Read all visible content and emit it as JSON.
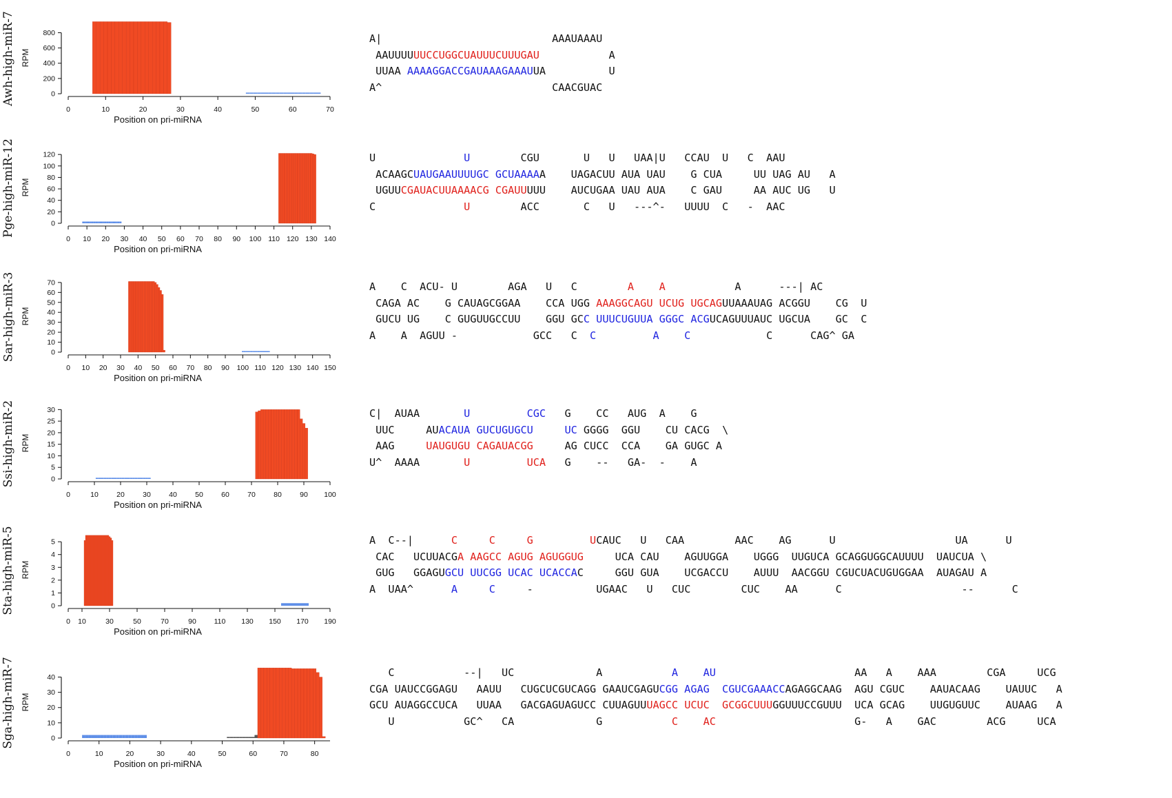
{
  "figure": {
    "x_axis_label": "Position on pri-miRNA",
    "y_axis_label": "RPM",
    "colors": {
      "mature": "#f04a23",
      "star": "#5f8fe8",
      "axis": "#111111",
      "mature_text": "#e0201b",
      "star_text": "#1f24e0"
    }
  },
  "chart_data": [
    {
      "type": "bar",
      "name": "Awh-high-miR-7",
      "xlim": [
        0,
        70
      ],
      "xticks": [
        0,
        10,
        20,
        30,
        40,
        50,
        60,
        70
      ],
      "ylim": [
        0,
        940
      ],
      "yticks": [
        0,
        200,
        400,
        600,
        800
      ],
      "xlabel": "Position on pri-miRNA",
      "ylabel": "RPM",
      "bars": [
        {
          "role": "mature",
          "color": "#f04a23",
          "x": [
            7,
            8,
            9,
            10,
            11,
            12,
            13,
            14,
            15,
            16,
            17,
            18,
            19,
            20,
            21,
            22,
            23,
            24,
            25,
            26,
            27
          ],
          "values": [
            945,
            945,
            945,
            945,
            945,
            945,
            945,
            945,
            945,
            945,
            945,
            945,
            945,
            945,
            945,
            945,
            945,
            945,
            945,
            945,
            935
          ]
        },
        {
          "role": "star",
          "color": "#5f8fe8",
          "x": [
            48,
            49,
            50,
            51,
            52,
            53,
            54,
            55,
            56,
            57,
            58,
            59,
            60,
            61,
            62,
            63,
            64,
            65,
            66,
            67
          ],
          "values": [
            10,
            10,
            10,
            10,
            10,
            10,
            10,
            10,
            10,
            10,
            10,
            10,
            10,
            10,
            10,
            10,
            10,
            10,
            10,
            10
          ]
        }
      ]
    },
    {
      "type": "bar",
      "name": "Pge-high-miR-12",
      "xlim": [
        0,
        140
      ],
      "xticks": [
        0,
        10,
        20,
        30,
        40,
        50,
        60,
        70,
        80,
        90,
        100,
        110,
        120,
        130,
        140
      ],
      "ylim": [
        0,
        125
      ],
      "yticks": [
        0,
        20,
        40,
        60,
        80,
        100,
        120
      ],
      "xlabel": "Position on pri-miRNA",
      "ylabel": "RPM",
      "bars": [
        {
          "role": "star",
          "color": "#5f8fe8",
          "x": [
            8,
            9,
            10,
            11,
            12,
            13,
            14,
            15,
            16,
            17,
            18,
            19,
            20,
            21,
            22,
            23,
            24,
            25,
            26,
            27,
            28
          ],
          "values": [
            3,
            3,
            3,
            3,
            3,
            3,
            3,
            3,
            3,
            3,
            3,
            3,
            3,
            3,
            3,
            3,
            3,
            3,
            3,
            3,
            3
          ]
        },
        {
          "role": "mature",
          "color": "#f04a23",
          "x": [
            113,
            114,
            115,
            116,
            117,
            118,
            119,
            120,
            121,
            122,
            123,
            124,
            125,
            126,
            127,
            128,
            129,
            130,
            131,
            132
          ],
          "values": [
            122,
            122,
            122,
            122,
            122,
            122,
            122,
            122,
            122,
            122,
            122,
            122,
            122,
            122,
            122,
            122,
            122,
            122,
            121,
            120
          ]
        }
      ]
    },
    {
      "type": "bar",
      "name": "Sar-high-miR-3",
      "xlim": [
        0,
        150
      ],
      "xticks": [
        0,
        10,
        20,
        30,
        40,
        50,
        60,
        70,
        80,
        90,
        100,
        110,
        120,
        130,
        140,
        150
      ],
      "ylim": [
        0,
        72
      ],
      "yticks": [
        0,
        10,
        20,
        30,
        40,
        50,
        60,
        70
      ],
      "xlabel": "Position on pri-miRNA",
      "ylabel": "RPM",
      "bars": [
        {
          "role": "mature",
          "color": "#f04a23",
          "x": [
            35,
            36,
            37,
            38,
            39,
            40,
            41,
            42,
            43,
            44,
            45,
            46,
            47,
            48,
            49,
            50,
            51,
            52,
            53,
            54,
            55
          ],
          "values": [
            71,
            71,
            71,
            71,
            71,
            71,
            71,
            71,
            71,
            71,
            71,
            71,
            71,
            71,
            71,
            70,
            68,
            65,
            62,
            58,
            2
          ]
        },
        {
          "role": "star",
          "color": "#5f8fe8",
          "x": [
            100,
            101,
            102,
            103,
            104,
            105,
            106,
            107,
            108,
            109,
            110,
            111,
            112,
            113,
            114,
            115
          ],
          "values": [
            0.4,
            0.4,
            0.4,
            0.4,
            0.4,
            0.4,
            0.4,
            0.4,
            0.4,
            0.4,
            0.4,
            0.4,
            0.4,
            0.4,
            0.4,
            0.4
          ]
        }
      ]
    },
    {
      "type": "bar",
      "name": "Ssi-high-miR-2",
      "xlim": [
        0,
        100
      ],
      "xticks": [
        0,
        10,
        20,
        30,
        40,
        50,
        60,
        70,
        80,
        90,
        100
      ],
      "ylim": [
        0,
        31
      ],
      "yticks": [
        0,
        5,
        10,
        15,
        20,
        25,
        30
      ],
      "xlabel": "Position on pri-miRNA",
      "ylabel": "RPM",
      "bars": [
        {
          "role": "star",
          "color": "#5f8fe8",
          "x": [
            11,
            12,
            13,
            14,
            15,
            16,
            17,
            18,
            19,
            20,
            21,
            22,
            23,
            24,
            25,
            26,
            27,
            28,
            29,
            30,
            31
          ],
          "values": [
            0.5,
            0.5,
            0.5,
            0.5,
            0.5,
            0.5,
            0.5,
            0.5,
            0.5,
            0.5,
            0.5,
            0.5,
            0.5,
            0.5,
            0.5,
            0.5,
            0.5,
            0.5,
            0.5,
            0.5,
            0.5
          ]
        },
        {
          "role": "mature",
          "color": "#f04a23",
          "x": [
            72,
            73,
            74,
            75,
            76,
            77,
            78,
            79,
            80,
            81,
            82,
            83,
            84,
            85,
            86,
            87,
            88,
            89,
            90,
            91
          ],
          "values": [
            29,
            29.5,
            30,
            30,
            30,
            30,
            30,
            30,
            30,
            30,
            30,
            30,
            30,
            30,
            30,
            30,
            30,
            26,
            24,
            22
          ]
        }
      ]
    },
    {
      "type": "bar",
      "name": "Sta-high-miR-5",
      "xlim": [
        0,
        190
      ],
      "xticks": [
        0,
        10,
        30,
        50,
        70,
        90,
        110,
        130,
        150,
        170,
        190
      ],
      "ylim": [
        0,
        5.6
      ],
      "yticks": [
        0,
        1,
        2,
        3,
        4,
        5
      ],
      "xlabel": "Position on pri-miRNA",
      "ylabel": "RPM",
      "bars": [
        {
          "role": "mature",
          "color": "#f04a23",
          "x": [
            12,
            13,
            14,
            15,
            16,
            17,
            18,
            19,
            20,
            21,
            22,
            23,
            24,
            25,
            26,
            27,
            28,
            29,
            30,
            31,
            32
          ],
          "values": [
            5.1,
            5.5,
            5.5,
            5.5,
            5.5,
            5.5,
            5.5,
            5.5,
            5.5,
            5.5,
            5.5,
            5.5,
            5.5,
            5.5,
            5.5,
            5.5,
            5.5,
            5.5,
            5.4,
            5.3,
            5.1
          ]
        },
        {
          "role": "star",
          "color": "#5f8fe8",
          "x": [
            155,
            156,
            157,
            158,
            159,
            160,
            161,
            162,
            163,
            164,
            165,
            166,
            167,
            168,
            169,
            170,
            171,
            172,
            173,
            174
          ],
          "values": [
            0.2,
            0.2,
            0.2,
            0.2,
            0.2,
            0.2,
            0.2,
            0.2,
            0.2,
            0.2,
            0.2,
            0.2,
            0.2,
            0.2,
            0.2,
            0.2,
            0.2,
            0.2,
            0.2,
            0.2
          ]
        }
      ]
    },
    {
      "type": "bar",
      "name": "Sga-high-miR-7",
      "xlim": [
        0,
        85
      ],
      "xticks": [
        0,
        10,
        20,
        30,
        40,
        50,
        60,
        70,
        80
      ],
      "ylim": [
        0,
        47
      ],
      "yticks": [
        0,
        10,
        20,
        30,
        40
      ],
      "xlabel": "Position on pri-miRNA",
      "ylabel": "RPM",
      "bars": [
        {
          "role": "star",
          "color": "#5f8fe8",
          "x": [
            5,
            6,
            7,
            8,
            9,
            10,
            11,
            12,
            13,
            14,
            15,
            16,
            17,
            18,
            19,
            20,
            21,
            22,
            23,
            24,
            25
          ],
          "values": [
            2,
            2,
            2,
            2,
            2,
            2,
            2,
            2,
            2,
            2,
            2,
            2,
            2,
            2,
            2,
            2,
            2,
            2,
            2,
            2,
            2
          ]
        },
        {
          "role": "other",
          "color": "#555555",
          "x": [
            52,
            53,
            54,
            55,
            56,
            57,
            58,
            59,
            60,
            61
          ],
          "values": [
            0.5,
            0.5,
            0.5,
            0.5,
            0.5,
            0.5,
            0.5,
            0.5,
            0.5,
            2
          ]
        },
        {
          "role": "mature",
          "color": "#f04a23",
          "x": [
            62,
            63,
            64,
            65,
            66,
            67,
            68,
            69,
            70,
            71,
            72,
            73,
            74,
            75,
            76,
            77,
            78,
            79,
            80,
            81,
            82,
            83
          ],
          "values": [
            46,
            46,
            46,
            46,
            46,
            46,
            46,
            46,
            46,
            46,
            46,
            45.5,
            45.5,
            45.5,
            45.5,
            45.5,
            45.5,
            45.5,
            45.5,
            43,
            40,
            1
          ]
        }
      ]
    }
  ],
  "structures": [
    {
      "lines": [
        [
          {
            "t": "A|                           AAAUAAAU"
          }
        ],
        [
          {
            "t": " AAUUUU"
          },
          {
            "t": "UUCCUGGCUAUUUCUUUGAU",
            "c": "r"
          },
          {
            "t": "           A"
          }
        ],
        [
          {
            "t": " UUAA "
          },
          {
            "t": "AAAAGGACCGAUAAAGAAAU",
            "c": "b"
          },
          {
            "t": "UA          U"
          }
        ],
        [
          {
            "t": "A^                           CAACGUAC"
          }
        ]
      ]
    },
    {
      "lines": [
        [
          {
            "t": "U              "
          },
          {
            "t": "U",
            "c": "b"
          },
          {
            "t": "        CGU       U   U   UAA|U   CCAU  U   C  AAU"
          }
        ],
        [
          {
            "t": " ACAAGC"
          },
          {
            "t": "UAUGAAUUUUGC GCUAAAA",
            "c": "b"
          },
          {
            "t": "A    UAGACUU AUA UAU    G CUA     UU UAG AU   A"
          }
        ],
        [
          {
            "t": " UGUU"
          },
          {
            "t": "CGAUACUUAAAACG CGAUU",
            "c": "r"
          },
          {
            "t": "UUU    AUCUGAA UAU AUA    C GAU     AA AUC UG   U"
          }
        ],
        [
          {
            "t": "C              "
          },
          {
            "t": "U",
            "c": "r"
          },
          {
            "t": "        ACC       C   U   ---^-   UUUU  C   -  AAC"
          }
        ]
      ]
    },
    {
      "lines": [
        [
          {
            "t": "A    C  ACU- U        AGA   U   C        "
          },
          {
            "t": "A    A",
            "c": "r"
          },
          {
            "t": "           A      ---| AC"
          }
        ],
        [
          {
            "t": " CAGA AC    G CAUAGCGGAA    CCA UGG "
          },
          {
            "t": "AAAGGCAGU UCUG UGCAG",
            "c": "r"
          },
          {
            "t": "UUAAAUAG ACGGU    CG  U"
          }
        ],
        [
          {
            "t": " GUCU UG    C GUGUUGCCUU    GGU GC"
          },
          {
            "t": "C UUUCUGUUA GGGC ACG",
            "c": "b"
          },
          {
            "t": "UCAGUUUAUC UGCUA    GC  C"
          }
        ],
        [
          {
            "t": "A    A  AGUU -            GCC   C  "
          },
          {
            "t": "C         A    C",
            "c": "b"
          },
          {
            "t": "            C      CAG^ GA"
          }
        ]
      ]
    },
    {
      "lines": [
        [
          {
            "t": "C|  AUAA       "
          },
          {
            "t": "U         CGC",
            "c": "b"
          },
          {
            "t": "   G    CC   AUG  A    G"
          }
        ],
        [
          {
            "t": " UUC     AU"
          },
          {
            "t": "ACAUA GUCUGUGCU     UC",
            "c": "b"
          },
          {
            "t": " GGGG  GGU    CU CACG  \\"
          }
        ],
        [
          {
            "t": " AAG     "
          },
          {
            "t": "UAUGUGU CAGAUACGG     ",
            "c": "r"
          },
          {
            "t": "AG CUCC  CCA    GA GUGC A"
          }
        ],
        [
          {
            "t": "U^  AAAA       "
          },
          {
            "t": "U         UCA",
            "c": "r"
          },
          {
            "t": "   G    --   GA-  -    A"
          }
        ]
      ]
    },
    {
      "lines": [
        [
          {
            "t": "A  C--|      "
          },
          {
            "t": "C     C     G         U",
            "c": "r"
          },
          {
            "t": "CAUC   U   CAA        AAC    AG      U                   UA      U"
          }
        ],
        [
          {
            "t": " CAC   UCUUACG"
          },
          {
            "t": "A AAGCC AGUG AGUGGUG",
            "c": "r"
          },
          {
            "t": "     UCA CAU    AGUUGGA    UGGG  UUGUCA GCAGGUGGCAUUUU  UAUCUA \\"
          }
        ],
        [
          {
            "t": " GUG   GGAGU"
          },
          {
            "t": "GCU UUCGG UCAC UCACCA",
            "c": "b"
          },
          {
            "t": "C     GGU GUA    UCGACCU    AUUU  AACGGU CGUCUACUGUGGAA  AUAGAU A"
          }
        ],
        [
          {
            "t": "A  UAA^      "
          },
          {
            "t": "A     C",
            "c": "b"
          },
          {
            "t": "     -          UGAAC   U   CUC        CUC    AA      C                   --      C"
          }
        ]
      ]
    },
    {
      "lines": [
        [
          {
            "t": "   C           --|   UC             A           "
          },
          {
            "t": "A    AU",
            "c": "b"
          },
          {
            "t": "                      AA   A    AAA        CGA     UCG"
          }
        ],
        [
          {
            "t": "CGA UAUCCGGAGU   AAUU   CUGCUCGUCAGG GAAUCGAGU"
          },
          {
            "t": "CGG AGAG  CGUCGAAACC",
            "c": "b"
          },
          {
            "t": "AGAGGCAAG  AGU CGUC    AAUACAAG    UAUUC   A"
          }
        ],
        [
          {
            "t": "GCU AUAGGCCUCA   UUAA   GACGAGUAGUCC CUUAGUU"
          },
          {
            "t": "UAGCC UCUC  GCGGCUUU",
            "c": "r"
          },
          {
            "t": "GGUUUCCGUUU  UCA GCAG    UUGUGUUC    AUAAG   A"
          }
        ],
        [
          {
            "t": "   U           GC^   CA             G           "
          },
          {
            "t": "C    AC",
            "c": "r"
          },
          {
            "t": "                      G-   A    GAC        ACG     UCA"
          }
        ]
      ]
    }
  ]
}
